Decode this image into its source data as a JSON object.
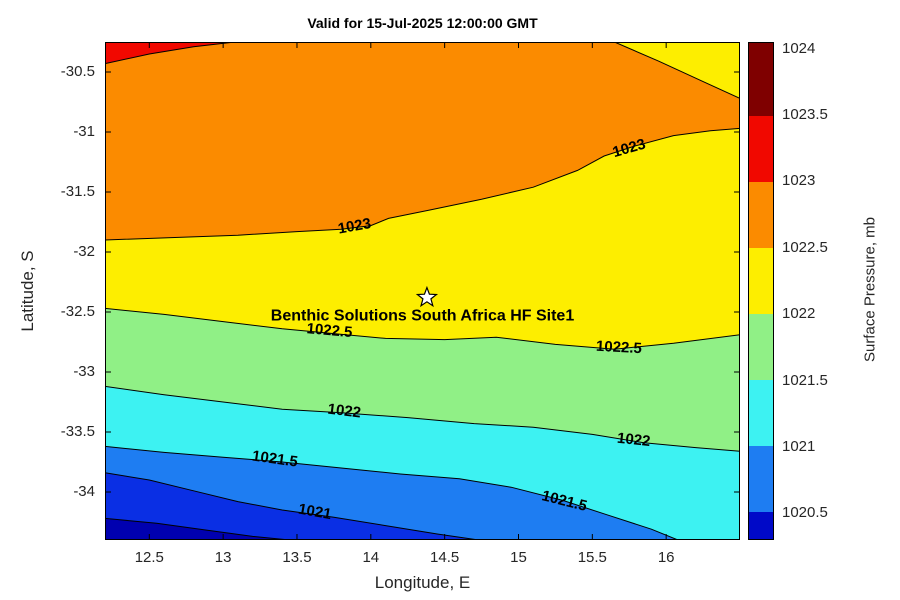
{
  "chart_data": {
    "type": "heatmap",
    "subtype": "filled_contour_map",
    "title": "Valid for 15-Jul-2025 12:00:00 GMT",
    "xlabel": "Longitude, E",
    "ylabel": "Latitude, S",
    "xlim": [
      12.2,
      16.5
    ],
    "ylim": [
      -34.4,
      -30.25
    ],
    "xticks": [
      12.5,
      13,
      13.5,
      14,
      14.5,
      15,
      15.5,
      16
    ],
    "yticks": [
      -30.5,
      -31,
      -31.5,
      -32,
      -32.5,
      -33,
      -33.5,
      -34
    ],
    "grid": false,
    "units": "mb",
    "base_fill": "#0000b0",
    "site_marker": {
      "marker": "white-star",
      "label": "Benthic Solutions South Africa HF Site1",
      "lon": 14.38,
      "lat": -32.38,
      "label_lon": 14.35,
      "label_lat": -32.57
    },
    "contours": [
      {
        "level": 1020.5,
        "close": "up",
        "fill": "#0a2fe4",
        "points": [
          [
            12.2,
            -34.22
          ],
          [
            12.55,
            -34.26
          ],
          [
            12.9,
            -34.32
          ],
          [
            13.2,
            -34.37
          ],
          [
            13.45,
            -34.4
          ]
        ],
        "labels": []
      },
      {
        "level": 1021,
        "close": "up",
        "fill": "#1e7df2",
        "points": [
          [
            12.2,
            -33.84
          ],
          [
            12.5,
            -33.9
          ],
          [
            12.8,
            -33.99
          ],
          [
            13.1,
            -34.08
          ],
          [
            13.4,
            -34.15
          ],
          [
            13.75,
            -34.21
          ],
          [
            14.1,
            -34.28
          ],
          [
            14.45,
            -34.35
          ],
          [
            14.73,
            -34.4
          ]
        ],
        "labels": [
          {
            "lon": 13.62,
            "lat": -34.17,
            "rot": 10
          }
        ]
      },
      {
        "level": 1021.5,
        "close": "up",
        "fill": "#3df2f2",
        "points": [
          [
            12.2,
            -33.62
          ],
          [
            12.6,
            -33.67
          ],
          [
            13.0,
            -33.71
          ],
          [
            13.4,
            -33.75
          ],
          [
            13.8,
            -33.8
          ],
          [
            14.2,
            -33.85
          ],
          [
            14.6,
            -33.89
          ],
          [
            14.95,
            -33.96
          ],
          [
            15.3,
            -34.07
          ],
          [
            15.6,
            -34.19
          ],
          [
            15.9,
            -34.31
          ],
          [
            16.08,
            -34.4
          ]
        ],
        "labels": [
          {
            "lon": 13.35,
            "lat": -33.73,
            "rot": 8
          },
          {
            "lon": 15.31,
            "lat": -34.08,
            "rot": 14
          }
        ]
      },
      {
        "level": 1022,
        "close": "up",
        "fill": "#90f086",
        "points": [
          [
            12.2,
            -33.12
          ],
          [
            12.6,
            -33.19
          ],
          [
            13.0,
            -33.25
          ],
          [
            13.4,
            -33.31
          ],
          [
            13.8,
            -33.34
          ],
          [
            14.25,
            -33.38
          ],
          [
            14.7,
            -33.43
          ],
          [
            15.1,
            -33.46
          ],
          [
            15.5,
            -33.52
          ],
          [
            15.85,
            -33.59
          ],
          [
            16.2,
            -33.63
          ],
          [
            16.5,
            -33.66
          ]
        ],
        "labels": [
          {
            "lon": 13.82,
            "lat": -33.33,
            "rot": 7
          },
          {
            "lon": 15.78,
            "lat": -33.57,
            "rot": 6
          }
        ]
      },
      {
        "level": 1022.5,
        "close": "up",
        "fill": "#fdee00",
        "points": [
          [
            12.2,
            -32.47
          ],
          [
            12.6,
            -32.52
          ],
          [
            13.0,
            -32.58
          ],
          [
            13.4,
            -32.64
          ],
          [
            13.75,
            -32.68
          ],
          [
            14.1,
            -32.72
          ],
          [
            14.5,
            -32.73
          ],
          [
            14.85,
            -32.71
          ],
          [
            15.25,
            -32.77
          ],
          [
            15.65,
            -32.81
          ],
          [
            16.05,
            -32.76
          ],
          [
            16.5,
            -32.69
          ]
        ],
        "labels": [
          {
            "lon": 13.72,
            "lat": -32.66,
            "rot": 5
          },
          {
            "lon": 15.68,
            "lat": -32.8,
            "rot": 3
          }
        ]
      },
      {
        "level": 1023,
        "close": "up",
        "fill": "#fb8b00",
        "points": [
          [
            12.2,
            -31.9
          ],
          [
            12.65,
            -31.88
          ],
          [
            13.1,
            -31.86
          ],
          [
            13.5,
            -31.83
          ],
          [
            13.8,
            -31.81
          ],
          [
            14.0,
            -31.78
          ],
          [
            14.12,
            -31.72
          ],
          [
            14.4,
            -31.65
          ],
          [
            14.75,
            -31.56
          ],
          [
            15.1,
            -31.46
          ],
          [
            15.4,
            -31.32
          ],
          [
            15.58,
            -31.2
          ],
          [
            15.78,
            -31.12
          ],
          [
            16.05,
            -31.03
          ],
          [
            16.3,
            -30.99
          ],
          [
            16.5,
            -30.97
          ]
        ],
        "labels": [
          {
            "lon": 13.89,
            "lat": -31.79,
            "rot": -10
          },
          {
            "lon": 15.75,
            "lat": -31.14,
            "rot": -16
          }
        ]
      },
      {
        "level": 1023.5,
        "close": "tl",
        "fill": "#f10800",
        "points": [
          [
            12.2,
            -30.43
          ],
          [
            12.5,
            -30.35
          ],
          [
            12.8,
            -30.29
          ],
          [
            13.08,
            -30.25
          ]
        ],
        "labels": []
      },
      {
        "level": 1023,
        "close": "tr",
        "fill": "#fdee00",
        "points": [
          [
            15.65,
            -30.25
          ],
          [
            15.95,
            -30.41
          ],
          [
            16.25,
            -30.58
          ],
          [
            16.5,
            -30.72
          ]
        ],
        "labels": []
      }
    ],
    "colorbar": {
      "label": "Surface Pressure, mb",
      "min": 1020.3,
      "max": 1024.05,
      "ticks": [
        1024,
        1023.5,
        1023,
        1022.5,
        1022,
        1021.5,
        1021,
        1020.5
      ],
      "segments": [
        {
          "from": 1023.5,
          "to": 1024.05,
          "color": "#7f0000"
        },
        {
          "from": 1023.0,
          "to": 1023.5,
          "color": "#f10800"
        },
        {
          "from": 1022.5,
          "to": 1023.0,
          "color": "#fb8b00"
        },
        {
          "from": 1022.0,
          "to": 1022.5,
          "color": "#fdee00"
        },
        {
          "from": 1021.5,
          "to": 1022.0,
          "color": "#90f086"
        },
        {
          "from": 1021.0,
          "to": 1021.5,
          "color": "#3df2f2"
        },
        {
          "from": 1020.5,
          "to": 1021.0,
          "color": "#1e7df2"
        },
        {
          "from": 1020.3,
          "to": 1020.5,
          "color": "#0009c8"
        }
      ]
    }
  }
}
